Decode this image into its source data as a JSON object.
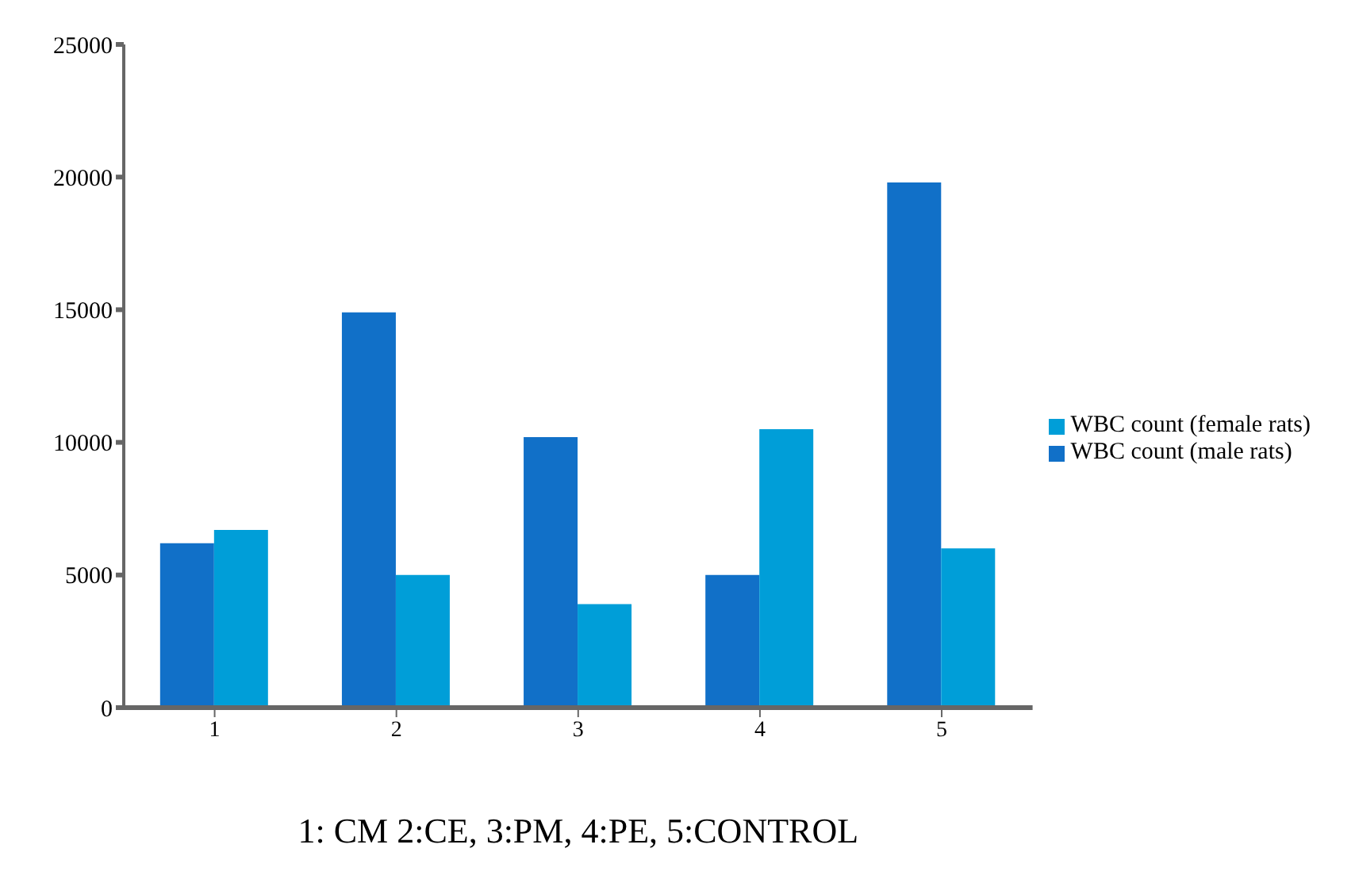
{
  "chart_data": {
    "type": "bar",
    "categories": [
      "1",
      "2",
      "3",
      "4",
      "5"
    ],
    "series": [
      {
        "name": "WBC count (male rats)",
        "color": "#1170c8",
        "values": [
          6200,
          14900,
          10200,
          5000,
          19800
        ]
      },
      {
        "name": "WBC count (female rats)",
        "color": "#009ed8",
        "values": [
          6700,
          5000,
          3900,
          10500,
          6000
        ]
      }
    ],
    "xlabel": "1: CM 2:CE, 3:PM, 4:PE, 5:CONTROL",
    "ylim": [
      0,
      25000
    ],
    "yticks": [
      0,
      5000,
      10000,
      15000,
      20000,
      25000
    ],
    "legend": "right",
    "grid": false
  }
}
